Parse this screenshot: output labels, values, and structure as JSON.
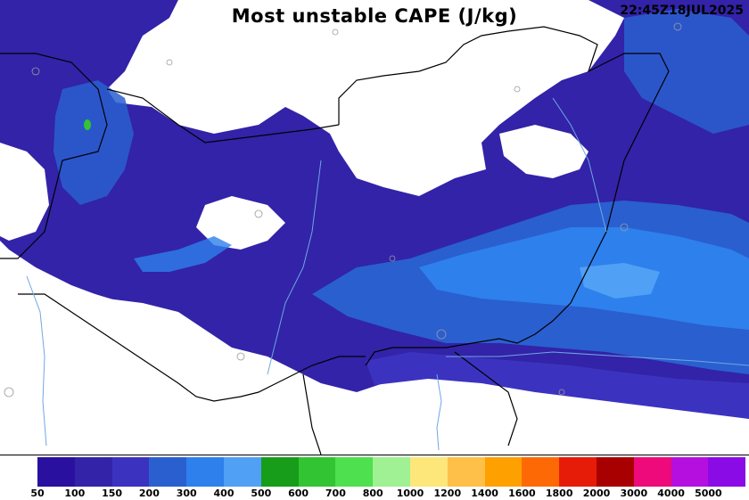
{
  "title": "Most unstable CAPE (J/kg)",
  "timestamp": "22:45Z18JUL2025",
  "legend": {
    "colors": [
      "#2a109e",
      "#3223a8",
      "#3b33c0",
      "#2a5fd0",
      "#2e80ec",
      "#50a0f5",
      "#179d19",
      "#33c433",
      "#4fe04f",
      "#a0f094",
      "#fde67a",
      "#fec048",
      "#fea000",
      "#fd6a05",
      "#e61c08",
      "#a80000",
      "#ee0a7a",
      "#b50fe0",
      "#8a0be5"
    ],
    "labels": [
      "50",
      "100",
      "150",
      "200",
      "300",
      "400",
      "500",
      "600",
      "700",
      "800",
      "1000",
      "1200",
      "1400",
      "1600",
      "1800",
      "2000",
      "3000",
      "4000",
      "5000"
    ]
  }
}
